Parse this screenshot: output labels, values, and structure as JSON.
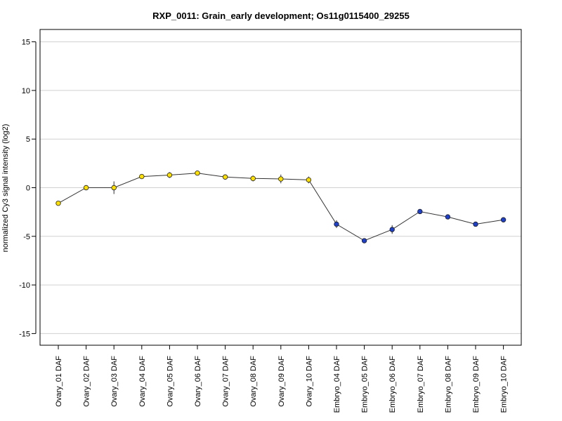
{
  "chart_data": {
    "type": "line",
    "title": "RXP_0011: Grain_early development; Os11g0115400_29255",
    "xlabel": "",
    "ylabel": "normalized Cy3 signal intensity (log2)",
    "ylim": [
      -16.2,
      16.2
    ],
    "yticks": [
      -15,
      -10,
      -5,
      0,
      5,
      10,
      15
    ],
    "ytick_labels": [
      "-15",
      "-10",
      "-5",
      "0",
      "5",
      "10",
      "15"
    ],
    "grid": true,
    "categories": [
      "Ovary_01 DAF",
      "Ovary_02 DAF",
      "Ovary_03 DAF",
      "Ovary_04 DAF",
      "Ovary_05 DAF",
      "Ovary_06 DAF",
      "Ovary_07 DAF",
      "Ovary_08 DAF",
      "Ovary_09 DAF",
      "Ovary_10 DAF",
      "Embryo_04 DAF",
      "Embryo_05 DAF",
      "Embryo_06 DAF",
      "Embryo_07 DAF",
      "Embryo_08 DAF",
      "Embryo_09 DAF",
      "Embryo_10 DAF"
    ],
    "series": [
      {
        "values": [
          -1.6,
          0.0,
          0.0,
          1.15,
          1.3,
          1.5,
          1.1,
          0.95,
          0.9,
          0.8,
          -3.75,
          -5.45,
          -4.3,
          -2.45,
          -3.0,
          -3.75,
          -3.3
        ],
        "error": [
          0.15,
          0.1,
          0.65,
          0.15,
          0.3,
          0.2,
          0.25,
          0.3,
          0.45,
          0.35,
          0.4,
          0.1,
          0.45,
          0.1,
          0.1,
          0.1,
          0.1
        ],
        "colors": [
          "#FFE000",
          "#FFE000",
          "#FFE000",
          "#FFE000",
          "#FFE000",
          "#FFE000",
          "#FFE000",
          "#FFE000",
          "#FFE000",
          "#FFE000",
          "#1E3FC8",
          "#1E3FC8",
          "#1E3FC8",
          "#1E3FC8",
          "#1E3FC8",
          "#1E3FC8",
          "#1E3FC8"
        ]
      }
    ],
    "colors": {
      "line": "#333333",
      "grid": "#d0d0d0",
      "frame": "#000000",
      "ovary": "#FFE000",
      "embryo": "#1E3FC8"
    }
  }
}
